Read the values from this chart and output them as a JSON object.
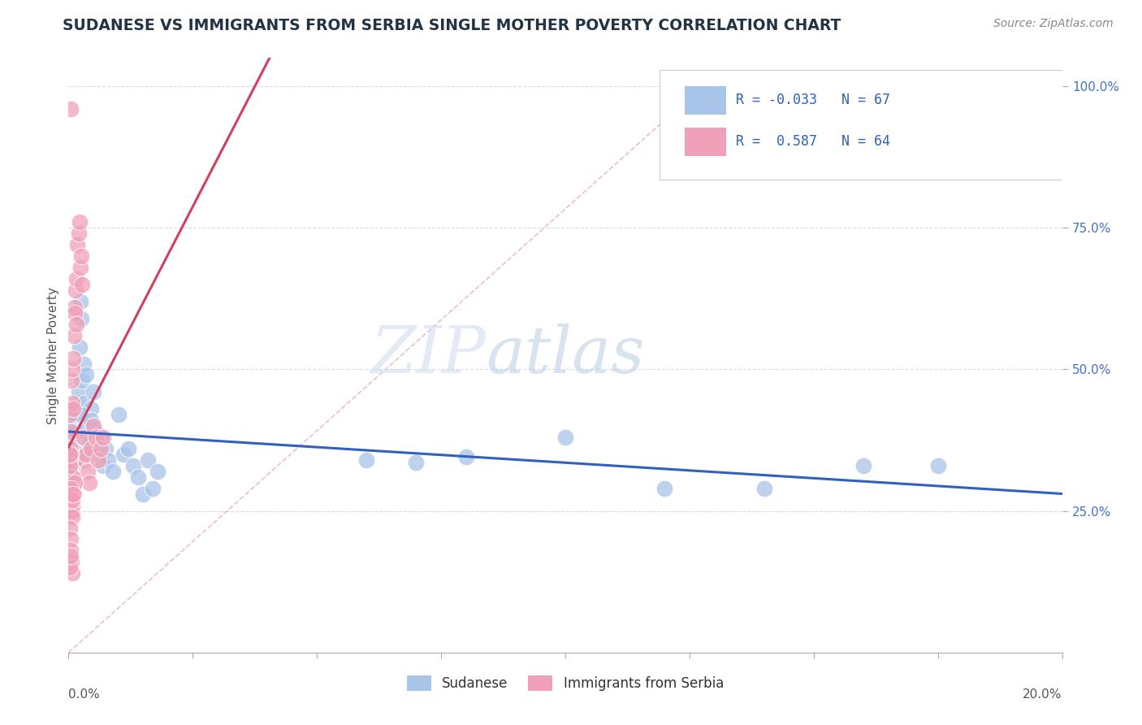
{
  "title": "SUDANESE VS IMMIGRANTS FROM SERBIA SINGLE MOTHER POVERTY CORRELATION CHART",
  "source": "Source: ZipAtlas.com",
  "ylabel": "Single Mother Poverty",
  "legend_label1": "Sudanese",
  "legend_label2": "Immigrants from Serbia",
  "R1": -0.033,
  "N1": 67,
  "R2": 0.587,
  "N2": 64,
  "color1": "#a8c4e8",
  "color2": "#f0a0b8",
  "line_color1": "#3060c0",
  "line_color2": "#d04060",
  "bg_color": "#ffffff",
  "grid_color": "#cccccc",
  "xmin": 0.0,
  "xmax": 0.2,
  "ymin": 0.0,
  "ymax": 1.05,
  "yticks": [
    0.25,
    0.5,
    0.75,
    1.0
  ],
  "ytick_labels": [
    "25.0%",
    "50.0%",
    "75.0%",
    "100.0%"
  ],
  "sudanese_x": [
    0.0002,
    0.0003,
    0.0004,
    0.0005,
    0.0006,
    0.0007,
    0.0008,
    0.0009,
    0.001,
    0.0011,
    0.0012,
    0.0013,
    0.0014,
    0.0015,
    0.0016,
    0.0018,
    0.002,
    0.0022,
    0.0024,
    0.0026,
    0.0028,
    0.003,
    0.0032,
    0.0035,
    0.0038,
    0.0042,
    0.0046,
    0.005,
    0.0055,
    0.006,
    0.0065,
    0.007,
    0.0075,
    0.008,
    0.009,
    0.01,
    0.011,
    0.012,
    0.013,
    0.014,
    0.015,
    0.016,
    0.017,
    0.018,
    0.0002,
    0.0003,
    0.0004,
    0.0005,
    0.0003,
    0.0004,
    0.0005,
    0.0006,
    0.0007,
    0.0025,
    0.0035,
    0.0045,
    0.06,
    0.07,
    0.08,
    0.1,
    0.12,
    0.14,
    0.16,
    0.175,
    0.0009,
    0.0011,
    0.0013
  ],
  "sudanese_y": [
    0.355,
    0.38,
    0.4,
    0.36,
    0.345,
    0.375,
    0.33,
    0.395,
    0.34,
    0.41,
    0.35,
    0.39,
    0.42,
    0.43,
    0.36,
    0.44,
    0.46,
    0.54,
    0.62,
    0.59,
    0.48,
    0.51,
    0.44,
    0.49,
    0.38,
    0.37,
    0.43,
    0.46,
    0.39,
    0.35,
    0.38,
    0.33,
    0.36,
    0.34,
    0.32,
    0.42,
    0.35,
    0.36,
    0.33,
    0.31,
    0.28,
    0.34,
    0.29,
    0.32,
    0.37,
    0.345,
    0.365,
    0.38,
    0.395,
    0.36,
    0.34,
    0.35,
    0.365,
    0.42,
    0.4,
    0.41,
    0.34,
    0.335,
    0.345,
    0.38,
    0.29,
    0.29,
    0.33,
    0.33,
    0.35,
    0.34,
    0.355
  ],
  "serbia_x": [
    0.0002,
    0.0003,
    0.0004,
    0.0005,
    0.0006,
    0.0007,
    0.0008,
    0.0009,
    0.001,
    0.0011,
    0.0012,
    0.0013,
    0.0014,
    0.0015,
    0.0016,
    0.0018,
    0.002,
    0.0022,
    0.0024,
    0.0026,
    0.0028,
    0.003,
    0.0032,
    0.0035,
    0.0038,
    0.0042,
    0.0046,
    0.005,
    0.0055,
    0.006,
    0.0065,
    0.007,
    0.0002,
    0.0003,
    0.0004,
    0.0005,
    0.0003,
    0.0004,
    0.0005,
    0.0006,
    0.0007,
    0.0008,
    0.0009,
    0.001,
    0.0011,
    0.0012,
    0.0002,
    0.0003,
    0.0004,
    0.0003,
    0.0004,
    0.0005,
    0.0006,
    0.0007,
    0.0008,
    0.0009,
    0.0003,
    0.0004,
    0.0005,
    0.0006,
    0.0007,
    0.0003,
    0.0004,
    0.0005
  ],
  "serbia_y": [
    0.355,
    0.42,
    0.36,
    0.39,
    0.48,
    0.5,
    0.44,
    0.43,
    0.52,
    0.56,
    0.61,
    0.6,
    0.64,
    0.66,
    0.58,
    0.72,
    0.74,
    0.76,
    0.68,
    0.7,
    0.65,
    0.38,
    0.34,
    0.35,
    0.32,
    0.3,
    0.36,
    0.4,
    0.38,
    0.34,
    0.36,
    0.38,
    0.34,
    0.32,
    0.35,
    0.31,
    0.29,
    0.28,
    0.3,
    0.27,
    0.25,
    0.26,
    0.31,
    0.29,
    0.28,
    0.3,
    0.33,
    0.35,
    0.27,
    0.26,
    0.28,
    0.29,
    0.25,
    0.24,
    0.27,
    0.28,
    0.22,
    0.2,
    0.18,
    0.16,
    0.14,
    0.15,
    0.17,
    0.96
  ],
  "diag_line_color": "#ddbbbb",
  "watermark_zip_color": "#c5d5ea",
  "watermark_atlas_color": "#c5d5ea"
}
